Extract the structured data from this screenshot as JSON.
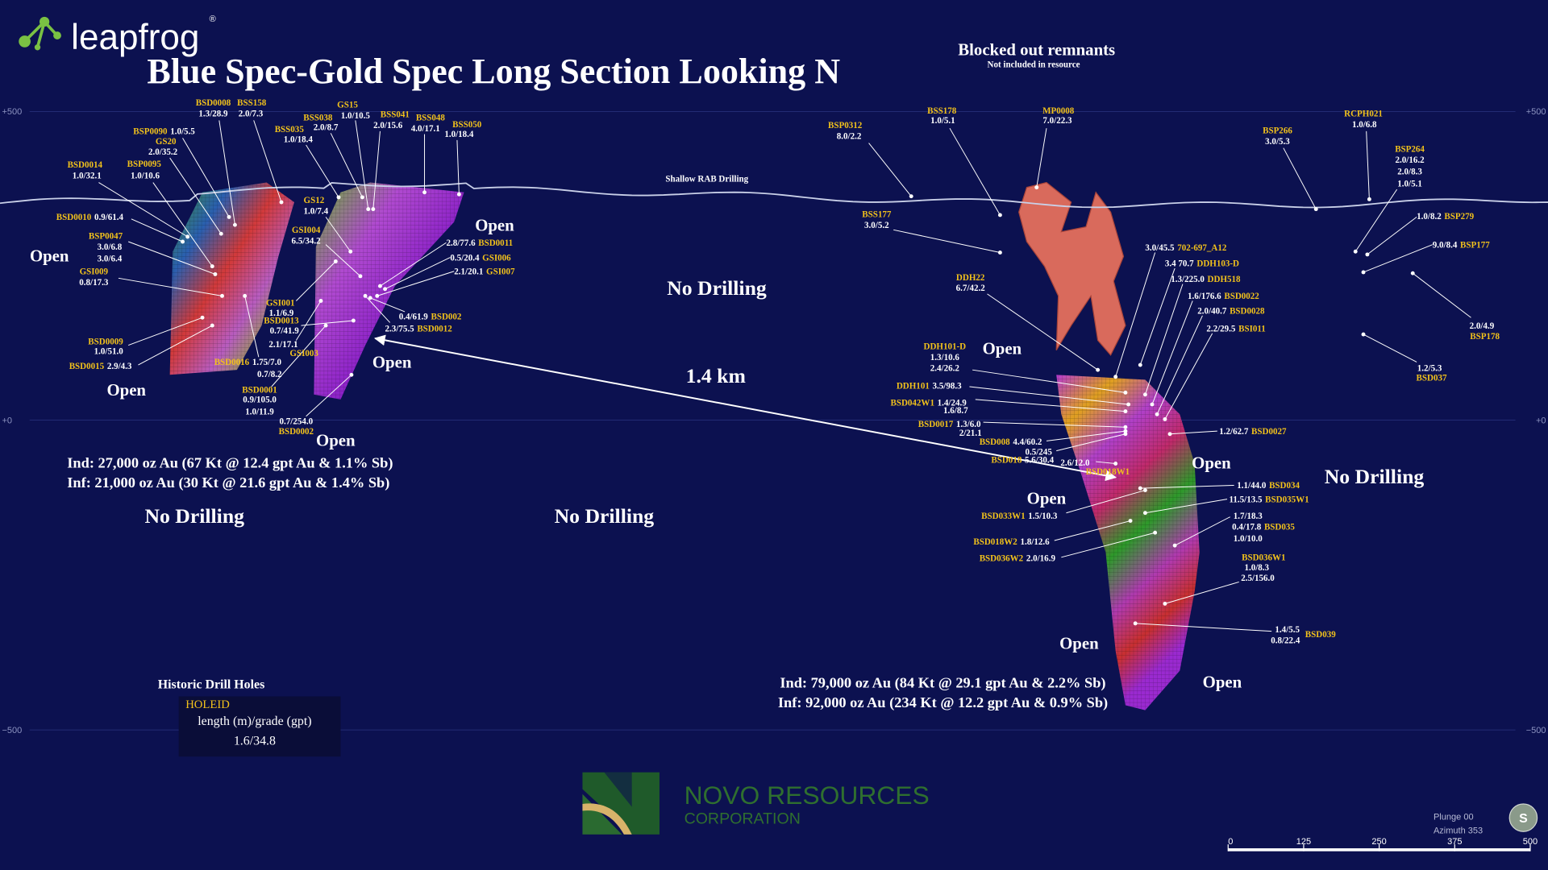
{
  "header": {
    "logo": "leapfrog",
    "logo_mark": "®",
    "title": "Blue Spec-Gold Spec Long Section Looking N"
  },
  "annotations": [
    "Blocked out remnants",
    "Not included in resource",
    "Shallow RAB Drilling",
    "No Drilling",
    "No Drilling",
    "No Drilling",
    "No Drilling",
    "1.4 km",
    "Open",
    "Open",
    "Open",
    "Open",
    "Open",
    "Open",
    "Open",
    "Open",
    "Open",
    "Open"
  ],
  "holes": [
    {
      "id": "BSD0008",
      "results": [
        "1.3/28.9"
      ]
    },
    {
      "id": "BSS158",
      "results": [
        "2.0/7.3"
      ]
    },
    {
      "id": "BSP0090",
      "results": [
        "1.0/5.5"
      ]
    },
    {
      "id": "GS20",
      "results": [
        "2.0/35.2"
      ]
    },
    {
      "id": "BSD0014",
      "results": [
        "1.0/32.1"
      ]
    },
    {
      "id": "BSP0095",
      "results": [
        "1.0/10.6"
      ]
    },
    {
      "id": "BSD0010",
      "results": [
        "0.9/61.4"
      ]
    },
    {
      "id": "BSP0047",
      "results": [
        "3.0/6.8",
        "3.0/6.4"
      ]
    },
    {
      "id": "GSI009",
      "results": [
        "0.8/17.3"
      ]
    },
    {
      "id": "BSD0009",
      "results": [
        "1.0/51.0"
      ]
    },
    {
      "id": "BSD0015",
      "results": [
        "2.9/4.3"
      ]
    },
    {
      "id": "BSD0016",
      "results": [
        "1.75/7.0",
        "0.7/8.2"
      ]
    },
    {
      "id": "BSD0001",
      "results": [
        "0.9/105.0",
        "1.0/11.9"
      ]
    },
    {
      "id": "BSD0002",
      "results": [
        "0.7/254.0"
      ]
    },
    {
      "id": "GSI001",
      "results": [
        "1.1/6.9"
      ]
    },
    {
      "id": "BSD0013",
      "results": [
        "0.7/41.9"
      ]
    },
    {
      "id": "GSI003",
      "results": [
        "2.1/17.1"
      ]
    },
    {
      "id": "BSS035",
      "results": [
        "1.0/18.4"
      ]
    },
    {
      "id": "BSS038",
      "results": [
        "2.0/8.7"
      ]
    },
    {
      "id": "GS15",
      "results": [
        "1.0/10.5"
      ]
    },
    {
      "id": "BSS041",
      "results": [
        "2.0/15.6"
      ]
    },
    {
      "id": "BSS048",
      "results": [
        "4.0/17.1"
      ]
    },
    {
      "id": "BSS050",
      "results": [
        "1.0/18.4"
      ]
    },
    {
      "id": "GS12",
      "results": [
        "1.0/7.4"
      ]
    },
    {
      "id": "GSI004",
      "results": [
        "6.5/34.2"
      ]
    },
    {
      "id": "BSD0011",
      "results": [
        "2.8/77.6"
      ]
    },
    {
      "id": "GSI006",
      "results": [
        "0.5/20.4"
      ]
    },
    {
      "id": "GSI007",
      "results": [
        "2.1/20.1"
      ]
    },
    {
      "id": "BSD002",
      "results": [
        "0.4/61.9"
      ]
    },
    {
      "id": "BSD0012",
      "results": [
        "2.3/75.5"
      ]
    },
    {
      "id": "BSP0312",
      "results": [
        "8.0/2.2"
      ]
    },
    {
      "id": "BSS178",
      "results": [
        "1.0/5.1"
      ]
    },
    {
      "id": "MP0008",
      "results": [
        "7.0/22.3"
      ]
    },
    {
      "id": "BSP266",
      "results": [
        "3.0/5.3"
      ]
    },
    {
      "id": "RCPH021",
      "results": [
        "1.0/6.8"
      ]
    },
    {
      "id": "BSP264",
      "results": [
        "2.0/16.2",
        "2.0/8.3",
        "1.0/5.1"
      ]
    },
    {
      "id": "BSS177",
      "results": [
        "3.0/5.2"
      ]
    },
    {
      "id": "BSP279",
      "results": [
        "1.0/8.2"
      ]
    },
    {
      "id": "BSP177",
      "results": [
        "9.0/8.4"
      ]
    },
    {
      "id": "BSP178",
      "results": [
        "2.0/4.9"
      ]
    },
    {
      "id": "BSD037",
      "results": [
        "1.2/5.3"
      ]
    },
    {
      "id": "DDH22",
      "results": [
        "6.7/42.2"
      ]
    },
    {
      "id": "702-697_A12",
      "results": [
        "3.0/45.5"
      ]
    },
    {
      "id": "DDH103-D",
      "results": [
        "3.4 70.7"
      ]
    },
    {
      "id": "DDH518",
      "results": [
        "1.3/225.0"
      ]
    },
    {
      "id": "BSD0022",
      "results": [
        "1.6/176.6"
      ]
    },
    {
      "id": "BSD0028",
      "results": [
        "2.0/40.7"
      ]
    },
    {
      "id": "BSI011",
      "results": [
        "2.2/29.5"
      ]
    },
    {
      "id": "DDH101-D",
      "results": [
        "1.3/10.6",
        "2.4/26.2"
      ]
    },
    {
      "id": "DDH101",
      "results": [
        "3.5/98.3"
      ]
    },
    {
      "id": "BSD042W1",
      "results": [
        "1.4/24.9",
        "1.6/8.7"
      ]
    },
    {
      "id": "BSD0017",
      "results": [
        "1.3/6.0",
        "2/21.1"
      ]
    },
    {
      "id": "BSD008",
      "results": [
        "4.4/60.2"
      ]
    },
    {
      "id": "BSD018",
      "results": [
        "0.5/245",
        "5.6/30.4"
      ]
    },
    {
      "id": "BSD018W1",
      "results": [
        "2.6/12.0"
      ]
    },
    {
      "id": "BSD0027",
      "results": [
        "1.2/62.7"
      ]
    },
    {
      "id": "BSD034",
      "results": [
        "1.1/44.0"
      ]
    },
    {
      "id": "BSD035W1",
      "results": [
        "11.5/13.5"
      ]
    },
    {
      "id": "BSD035",
      "results": [
        "1.7/18.3",
        "0.4/17.8",
        "1.0/10.0"
      ]
    },
    {
      "id": "BSD036W1",
      "results": [
        "1.0/8.3",
        "2.5/156.0"
      ]
    },
    {
      "id": "BSD033W1",
      "results": [
        "1.5/10.3"
      ]
    },
    {
      "id": "BSD018W2",
      "results": [
        "1.8/12.6"
      ]
    },
    {
      "id": "BSD036W2",
      "results": [
        "2.0/16.9"
      ]
    },
    {
      "id": "BSD039",
      "results": [
        "1.4/5.5",
        "0.8/22.4"
      ]
    }
  ],
  "resources": {
    "left": [
      "Ind: 27,000 oz Au (67 Kt @ 12.4 gpt Au & 1.1% Sb)",
      "Inf: 21,000 oz Au (30 Kt @ 21.6 gpt Au & 1.4% Sb)"
    ],
    "right": [
      "Ind: 79,000 oz Au (84 Kt @ 29.1 gpt Au & 2.2% Sb)",
      "Inf: 92,000 oz Au (234 Kt @ 12.2 gpt Au & 0.9% Sb)"
    ]
  },
  "legend": {
    "title": "Historic Drill Holes",
    "holeid": "HOLEID",
    "format": "length (m)/grade (gpt)",
    "example": "1.6/34.8"
  },
  "elevation_labels": [
    "+500",
    "+0",
    "−500"
  ],
  "scale_bar": {
    "labels": [
      0,
      125,
      250,
      375,
      500
    ]
  },
  "view": {
    "plunge": "Plunge 00",
    "azimuth": "Azimuth 353",
    "compass": "S"
  },
  "company": {
    "name": "NOVO RESOURCES",
    "subtitle": "CORPORATION"
  }
}
